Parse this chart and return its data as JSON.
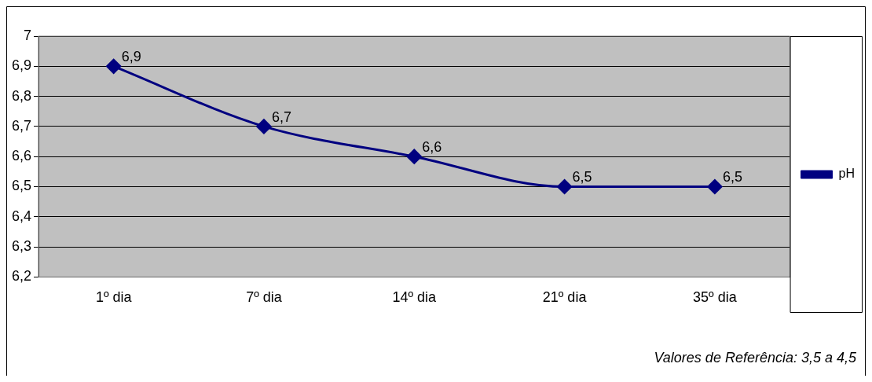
{
  "chart_data": {
    "type": "line",
    "categories": [
      "1º dia",
      "7º dia",
      "14º dia",
      "21º dia",
      "35º dia"
    ],
    "series": [
      {
        "name": "pH",
        "color": "#000080",
        "values": [
          6.9,
          6.7,
          6.6,
          6.5,
          6.5
        ],
        "value_labels": [
          "6,9",
          "6,7",
          "6,6",
          "6,5",
          "6,5"
        ]
      }
    ],
    "ylim": [
      6.2,
      7
    ],
    "yticks": [
      {
        "value": 6.2,
        "label": "6,2"
      },
      {
        "value": 6.3,
        "label": "6,3"
      },
      {
        "value": 6.4,
        "label": "6,4"
      },
      {
        "value": 6.5,
        "label": "6,5"
      },
      {
        "value": 6.6,
        "label": "6,6"
      },
      {
        "value": 6.7,
        "label": "6,7"
      },
      {
        "value": 6.8,
        "label": "6,8"
      },
      {
        "value": 6.9,
        "label": "6,9"
      },
      7
    ],
    "grid": "y",
    "legend": "right",
    "marker": "diamond",
    "annotations": [
      "Valores de Referência: 3,5 a 4,5"
    ]
  }
}
